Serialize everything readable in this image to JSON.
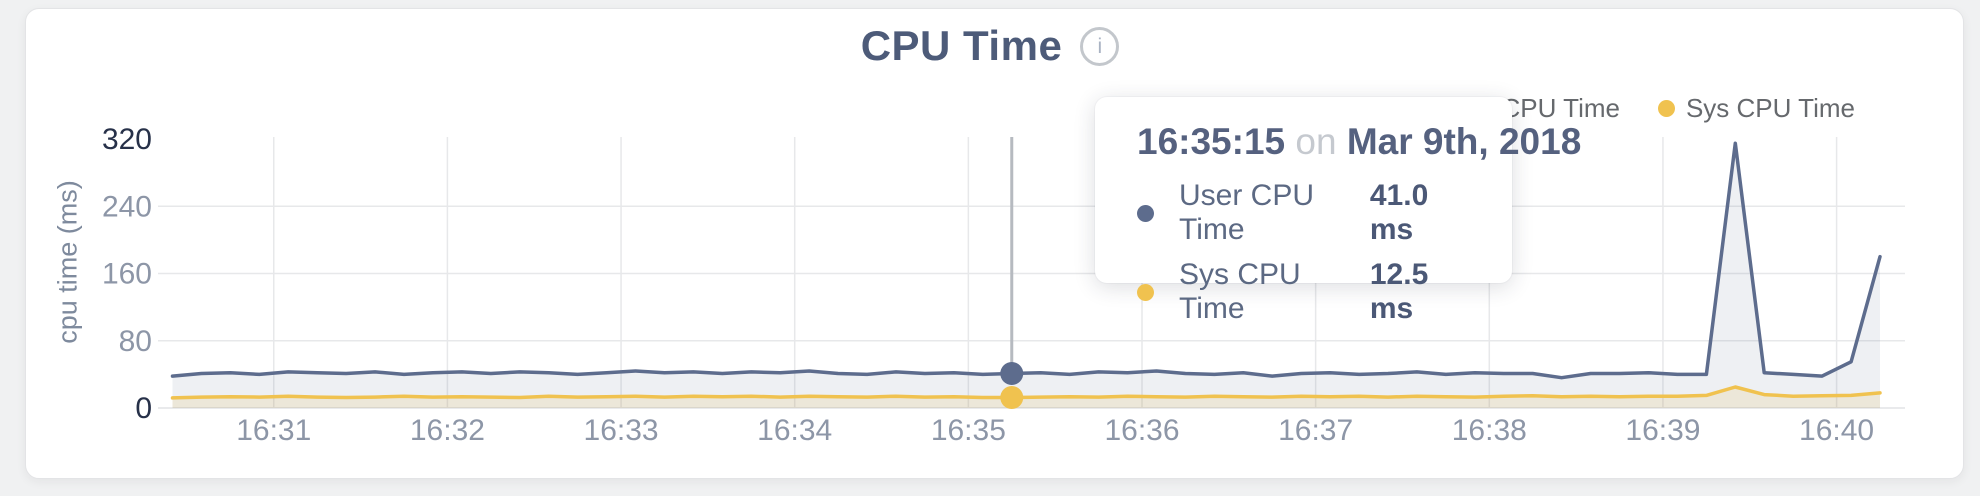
{
  "header": {
    "title": "CPU Time",
    "info_icon": "i"
  },
  "legend": {
    "items": [
      {
        "label": "User CPU Time",
        "color": "#5d6c8d"
      },
      {
        "label": "Sys CPU Time",
        "color": "#f0c24f"
      }
    ]
  },
  "tooltip": {
    "time": "16:35:15",
    "connector": "on",
    "date": "Mar 9th, 2018",
    "rows": [
      {
        "label": "User CPU Time",
        "value": "41.0 ms"
      },
      {
        "label": "Sys CPU Time",
        "value": "12.5 ms"
      }
    ]
  },
  "colors": {
    "axis_dark": "#273149",
    "axis_gray": "#8d96a7",
    "grid": "#e7e8ea",
    "baseline": "#e2e3e5",
    "hover_line": "#b6bac0",
    "user_fill": "rgba(93,108,141,0.10)",
    "sys_fill": "rgba(240,194,79,0.16)"
  },
  "chart_data": {
    "type": "area",
    "title": "CPU Time",
    "xlabel": "",
    "ylabel": "cpu time (ms)",
    "ylim": [
      0,
      320
    ],
    "yticks": [
      0,
      80,
      160,
      240,
      320
    ],
    "xticks": [
      "16:31",
      "16:32",
      "16:33",
      "16:34",
      "16:35",
      "16:36",
      "16:37",
      "16:38",
      "16:39",
      "16:40"
    ],
    "x_range": [
      "16:30:20",
      "16:40:15"
    ],
    "grid": true,
    "legend_position": "top-right",
    "x": [
      "16:30:25",
      "16:30:35",
      "16:30:45",
      "16:30:55",
      "16:31:05",
      "16:31:15",
      "16:31:25",
      "16:31:35",
      "16:31:45",
      "16:31:55",
      "16:32:05",
      "16:32:15",
      "16:32:25",
      "16:32:35",
      "16:32:45",
      "16:32:55",
      "16:33:05",
      "16:33:15",
      "16:33:25",
      "16:33:35",
      "16:33:45",
      "16:33:55",
      "16:34:05",
      "16:34:15",
      "16:34:25",
      "16:34:35",
      "16:34:45",
      "16:34:55",
      "16:35:05",
      "16:35:15",
      "16:35:25",
      "16:35:35",
      "16:35:45",
      "16:35:55",
      "16:36:05",
      "16:36:15",
      "16:36:25",
      "16:36:35",
      "16:36:45",
      "16:36:55",
      "16:37:05",
      "16:37:15",
      "16:37:25",
      "16:37:35",
      "16:37:45",
      "16:37:55",
      "16:38:05",
      "16:38:15",
      "16:38:25",
      "16:38:35",
      "16:38:45",
      "16:38:55",
      "16:39:05",
      "16:39:15",
      "16:39:25",
      "16:39:35",
      "16:39:45",
      "16:39:55",
      "16:40:05",
      "16:40:15"
    ],
    "series": [
      {
        "name": "User CPU Time",
        "color": "#5d6c8d",
        "values": [
          38,
          41,
          42,
          40,
          43,
          42,
          41,
          43,
          40,
          42,
          43,
          41,
          43,
          42,
          40,
          42,
          44,
          42,
          43,
          41,
          43,
          42,
          44,
          41,
          40,
          43,
          41,
          42,
          40,
          41,
          42,
          40,
          43,
          42,
          44,
          41,
          40,
          42,
          38,
          41,
          42,
          40,
          41,
          43,
          40,
          42,
          41,
          41,
          36,
          41,
          41,
          42,
          40,
          40,
          315,
          42,
          40,
          38,
          55,
          180
        ]
      },
      {
        "name": "Sys CPU Time",
        "color": "#f0c24f",
        "values": [
          12,
          13,
          13.5,
          13,
          14,
          13,
          12.5,
          13,
          14,
          13,
          13.5,
          13,
          12.5,
          14,
          13,
          13.5,
          14,
          13,
          14,
          13.5,
          14,
          13,
          14,
          13.5,
          13,
          14,
          13,
          13.5,
          12.5,
          12.5,
          13,
          13.5,
          13,
          14,
          13.5,
          13,
          14,
          13.5,
          13,
          14,
          13.5,
          14,
          13,
          14,
          13.5,
          13,
          14,
          14.5,
          13.5,
          14,
          13.5,
          14,
          14,
          15,
          25,
          16,
          14,
          14.5,
          15,
          18
        ]
      }
    ],
    "hover": {
      "time": "16:35:15",
      "date": "Mar 9th, 2018",
      "values": [
        41.0,
        12.5
      ]
    }
  }
}
